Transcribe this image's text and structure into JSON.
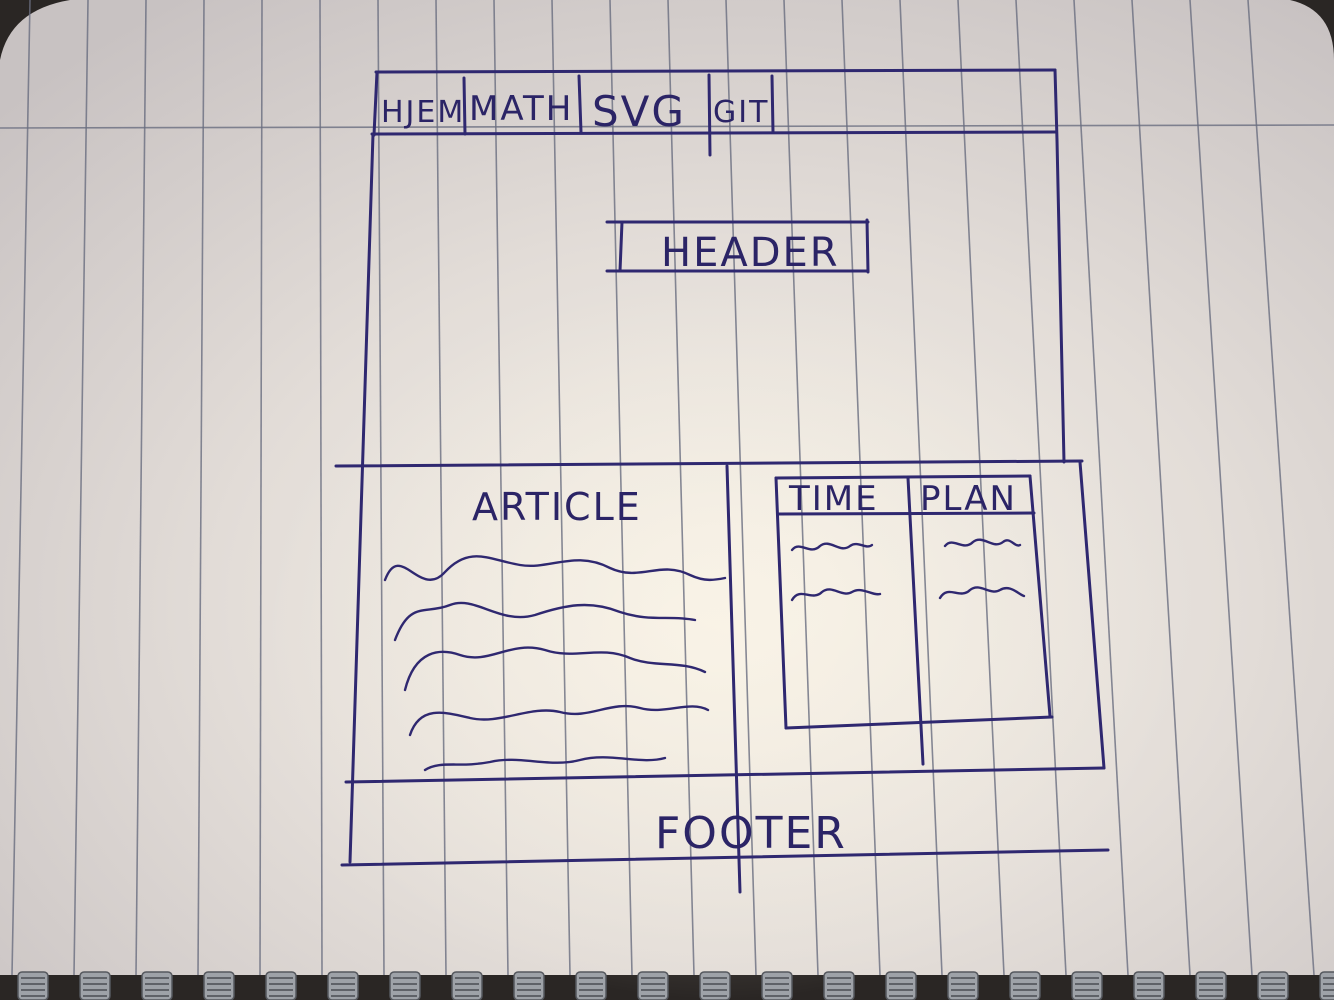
{
  "nav": {
    "items": [
      "HJEM",
      "MATH",
      "SVG",
      "GIT"
    ]
  },
  "header": {
    "label": "HEADER"
  },
  "article": {
    "label": "ARTICLE"
  },
  "table": {
    "col1": "TIME",
    "col2": "PLAN"
  },
  "footer": {
    "label": "FOOTER"
  },
  "colors": {
    "ink": "#2f2870",
    "paper": "#ece8e4"
  }
}
